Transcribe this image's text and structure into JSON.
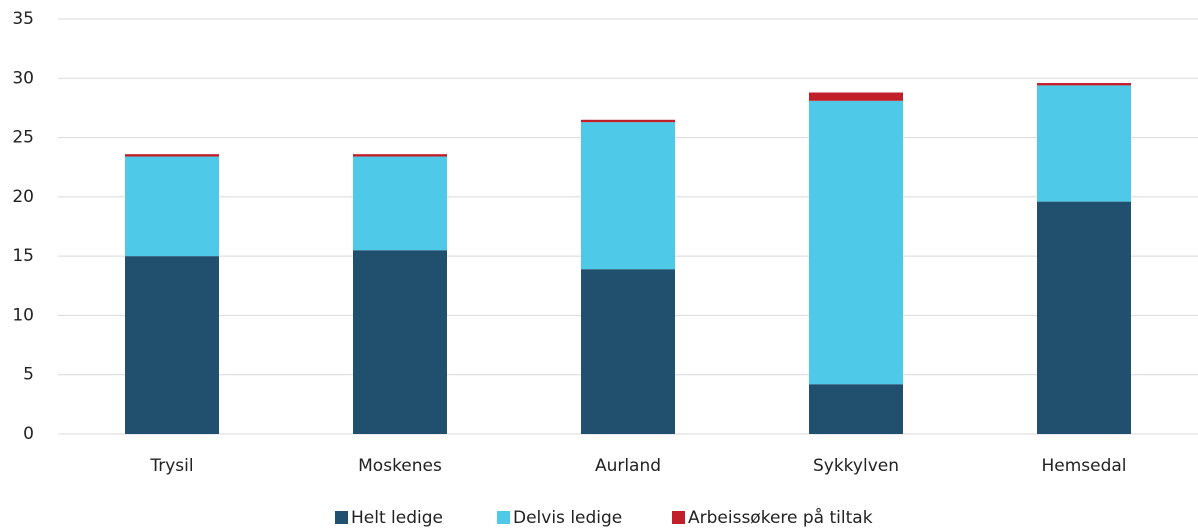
{
  "chart_data": {
    "type": "stacked_bar",
    "categories": [
      "Trysil",
      "Moskenes",
      "Aurland",
      "Sykkylven",
      "Hemsedal"
    ],
    "series": [
      {
        "name": "Helt ledige",
        "color": "#214f6e",
        "values": [
          15.0,
          15.5,
          13.9,
          4.2,
          19.6
        ]
      },
      {
        "name": "Delvis ledige",
        "color": "#4fc9e8",
        "values": [
          8.4,
          7.9,
          12.4,
          23.9,
          9.8
        ]
      },
      {
        "name": "Arbeissøkere på tiltak",
        "color": "#c0202a",
        "values": [
          0.2,
          0.2,
          0.2,
          0.7,
          0.2
        ]
      }
    ],
    "ylim": [
      0,
      35
    ],
    "yticks": [
      0,
      5,
      10,
      15,
      20,
      25,
      30,
      35
    ],
    "grid": true,
    "legend": "bottom"
  }
}
